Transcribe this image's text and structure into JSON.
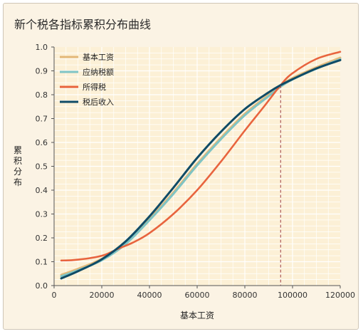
{
  "chart_data": {
    "type": "line",
    "title": "新个税各指标累积分布曲线",
    "xlabel": "基本工资",
    "ylabel": "累积分布",
    "xlim": [
      0,
      120000
    ],
    "ylim": [
      0,
      1.0
    ],
    "x_ticks": [
      "0",
      "20000",
      "40000",
      "60000",
      "80000",
      "100000",
      "120000"
    ],
    "y_ticks": [
      "0.0",
      "0.1",
      "0.2",
      "0.3",
      "0.4",
      "0.5",
      "0.6",
      "0.7",
      "0.8",
      "0.9",
      "1.0"
    ],
    "grid": true,
    "legend_position": "top-left",
    "reference_line_x": 95000,
    "series": [
      {
        "name": "基本工资",
        "color": "#e3b878",
        "x": [
          3000,
          10000,
          20000,
          30000,
          40000,
          50000,
          60000,
          70000,
          80000,
          90000,
          95000,
          100000,
          110000,
          120000
        ],
        "y": [
          0.045,
          0.07,
          0.112,
          0.18,
          0.28,
          0.39,
          0.51,
          0.62,
          0.72,
          0.8,
          0.84,
          0.87,
          0.915,
          0.955
        ]
      },
      {
        "name": "应纳税额",
        "color": "#7fc4c4",
        "x": [
          3000,
          10000,
          20000,
          30000,
          40000,
          50000,
          60000,
          70000,
          80000,
          90000,
          95000,
          100000,
          110000,
          120000
        ],
        "y": [
          0.045,
          0.07,
          0.112,
          0.18,
          0.28,
          0.39,
          0.51,
          0.62,
          0.72,
          0.8,
          0.84,
          0.87,
          0.915,
          0.955
        ]
      },
      {
        "name": "所得税",
        "color": "#e8643e",
        "x": [
          3000,
          8000,
          15000,
          21000,
          27000,
          33000,
          40000,
          50000,
          60000,
          70000,
          80000,
          88000,
          95000,
          100000,
          110000,
          120000
        ],
        "y": [
          0.105,
          0.107,
          0.115,
          0.128,
          0.155,
          0.18,
          0.22,
          0.3,
          0.4,
          0.52,
          0.65,
          0.75,
          0.84,
          0.89,
          0.95,
          0.98
        ]
      },
      {
        "name": "税后收入",
        "color": "#0f4b66",
        "x": [
          3000,
          10000,
          20000,
          30000,
          40000,
          50000,
          60000,
          70000,
          80000,
          90000,
          95000,
          100000,
          110000,
          120000
        ],
        "y": [
          0.03,
          0.06,
          0.11,
          0.185,
          0.29,
          0.41,
          0.535,
          0.645,
          0.74,
          0.81,
          0.84,
          0.865,
          0.91,
          0.945
        ]
      }
    ]
  }
}
